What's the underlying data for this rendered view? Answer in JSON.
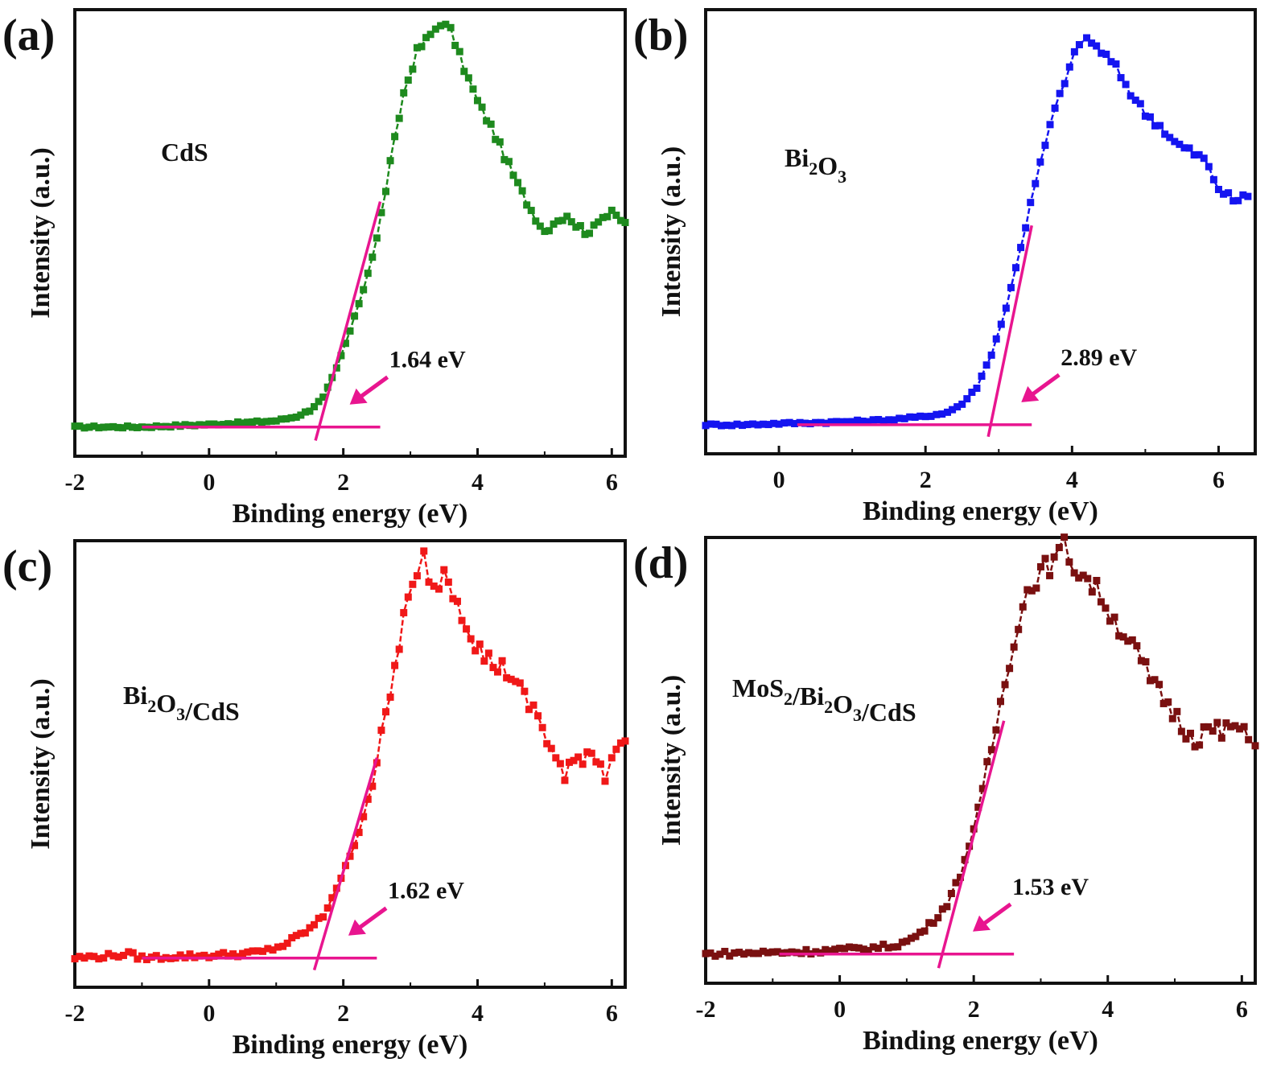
{
  "figure": {
    "accent": "#e8158f",
    "x_title": "Binding energy (eV)",
    "y_title": "Intensity (a.u.)"
  },
  "chart_data": [
    {
      "type": "scatter",
      "panel": "(a)",
      "sample_label": [
        [
          "CdS",
          ""
        ]
      ],
      "color": "#1e8a1e",
      "xlim": [
        -2,
        6.2
      ],
      "ylim": [
        -0.07,
        1.0
      ],
      "xticks": [
        -2,
        0,
        2,
        4,
        6
      ],
      "xlabel": "Binding energy (eV)",
      "ylabel": "Intensity (a.u.)",
      "annotation": "1.64 eV",
      "edge_ev": 1.64,
      "fit_top": [
        2.55,
        0.54
      ],
      "baseline_range": [
        -1.0,
        2.55
      ],
      "peak": [
        3.45,
        0.97
      ],
      "series_points": [
        [
          -2,
          0.0
        ],
        [
          -1.5,
          0.0
        ],
        [
          -1,
          0.0
        ],
        [
          -0.5,
          0.003
        ],
        [
          0,
          0.006
        ],
        [
          0.5,
          0.01
        ],
        [
          1.0,
          0.015
        ],
        [
          1.3,
          0.025
        ],
        [
          1.5,
          0.04
        ],
        [
          1.7,
          0.07
        ],
        [
          1.9,
          0.14
        ],
        [
          2.1,
          0.23
        ],
        [
          2.3,
          0.33
        ],
        [
          2.5,
          0.45
        ],
        [
          2.7,
          0.63
        ],
        [
          2.9,
          0.8
        ],
        [
          3.1,
          0.9
        ],
        [
          3.3,
          0.94
        ],
        [
          3.45,
          0.97
        ],
        [
          3.6,
          0.95
        ],
        [
          3.8,
          0.86
        ],
        [
          4.0,
          0.78
        ],
        [
          4.2,
          0.72
        ],
        [
          4.4,
          0.65
        ],
        [
          4.6,
          0.58
        ],
        [
          4.8,
          0.52
        ],
        [
          5.0,
          0.47
        ],
        [
          5.2,
          0.5
        ],
        [
          5.4,
          0.5
        ],
        [
          5.6,
          0.46
        ],
        [
          5.8,
          0.5
        ],
        [
          6.0,
          0.51
        ],
        [
          6.2,
          0.49
        ]
      ]
    },
    {
      "type": "scatter",
      "panel": "(b)",
      "sample_label": [
        [
          "Bi",
          "2"
        ],
        [
          "O",
          "3"
        ]
      ],
      "color": "#1414f0",
      "xlim": [
        -1,
        6.5
      ],
      "ylim": [
        -0.07,
        1.0
      ],
      "xticks": [
        0,
        2,
        4,
        6
      ],
      "xlabel": "Binding energy (eV)",
      "ylabel": "Intensity (a.u.)",
      "annotation": "2.89 eV",
      "edge_ev": 2.89,
      "fit_top": [
        3.45,
        0.48
      ],
      "baseline_range": [
        0.25,
        3.45
      ],
      "peak": [
        4.2,
        0.93
      ],
      "series_points": [
        [
          -1,
          0.0
        ],
        [
          -0.5,
          0.0
        ],
        [
          0,
          0.003
        ],
        [
          0.5,
          0.005
        ],
        [
          1.0,
          0.008
        ],
        [
          1.5,
          0.012
        ],
        [
          2.0,
          0.02
        ],
        [
          2.3,
          0.03
        ],
        [
          2.5,
          0.05
        ],
        [
          2.7,
          0.09
        ],
        [
          2.9,
          0.17
        ],
        [
          3.1,
          0.28
        ],
        [
          3.3,
          0.43
        ],
        [
          3.5,
          0.58
        ],
        [
          3.7,
          0.72
        ],
        [
          3.9,
          0.83
        ],
        [
          4.1,
          0.92
        ],
        [
          4.2,
          0.93
        ],
        [
          4.4,
          0.9
        ],
        [
          4.6,
          0.86
        ],
        [
          4.8,
          0.8
        ],
        [
          5.0,
          0.75
        ],
        [
          5.2,
          0.72
        ],
        [
          5.4,
          0.68
        ],
        [
          5.6,
          0.66
        ],
        [
          5.8,
          0.64
        ],
        [
          6.0,
          0.57
        ],
        [
          6.2,
          0.54
        ],
        [
          6.4,
          0.55
        ]
      ]
    },
    {
      "type": "scatter",
      "panel": "(c)",
      "sample_label": [
        [
          "Bi",
          "2"
        ],
        [
          "O",
          "3"
        ],
        [
          "/CdS",
          ""
        ]
      ],
      "color": "#f01818",
      "xlim": [
        -2,
        6.2
      ],
      "ylim": [
        -0.07,
        1.0
      ],
      "xticks": [
        -2,
        0,
        2,
        4,
        6
      ],
      "xlabel": "Binding energy (eV)",
      "ylabel": "Intensity (a.u.)",
      "annotation": "1.62 eV",
      "edge_ev": 1.62,
      "fit_top": [
        2.5,
        0.48
      ],
      "baseline_range": [
        -1.0,
        2.5
      ],
      "peak": [
        3.2,
        0.96
      ],
      "series_points": [
        [
          -2,
          0.0
        ],
        [
          -1.5,
          0.005
        ],
        [
          -1.2,
          0.01
        ],
        [
          -1,
          0.0
        ],
        [
          -0.5,
          0.004
        ],
        [
          0,
          0.006
        ],
        [
          0.5,
          0.01
        ],
        [
          0.8,
          0.015
        ],
        [
          1.1,
          0.03
        ],
        [
          1.3,
          0.05
        ],
        [
          1.5,
          0.07
        ],
        [
          1.7,
          0.1
        ],
        [
          1.9,
          0.17
        ],
        [
          2.1,
          0.24
        ],
        [
          2.3,
          0.34
        ],
        [
          2.5,
          0.47
        ],
        [
          2.7,
          0.63
        ],
        [
          2.9,
          0.82
        ],
        [
          3.1,
          0.91
        ],
        [
          3.2,
          0.96
        ],
        [
          3.35,
          0.88
        ],
        [
          3.5,
          0.93
        ],
        [
          3.7,
          0.86
        ],
        [
          3.9,
          0.78
        ],
        [
          4.1,
          0.72
        ],
        [
          4.3,
          0.7
        ],
        [
          4.5,
          0.68
        ],
        [
          4.7,
          0.62
        ],
        [
          4.9,
          0.58
        ],
        [
          5.1,
          0.5
        ],
        [
          5.3,
          0.43
        ],
        [
          5.5,
          0.48
        ],
        [
          5.7,
          0.5
        ],
        [
          5.9,
          0.44
        ],
        [
          6.0,
          0.5
        ],
        [
          6.2,
          0.52
        ]
      ]
    },
    {
      "type": "scatter",
      "panel": "(d)",
      "sample_label": [
        [
          "MoS",
          "2"
        ],
        [
          "/Bi",
          "2"
        ],
        [
          "O",
          "3"
        ],
        [
          "/CdS",
          ""
        ]
      ],
      "color": "#7a1010",
      "xlim": [
        -2,
        6.2
      ],
      "ylim": [
        -0.07,
        1.0
      ],
      "xticks": [
        -2,
        0,
        2,
        4,
        6
      ],
      "xlabel": "Binding energy (eV)",
      "ylabel": "Intensity (a.u.)",
      "annotation": "1.53 eV",
      "edge_ev": 1.53,
      "fit_top": [
        2.45,
        0.56
      ],
      "baseline_range": [
        -0.9,
        2.6
      ],
      "peak": [
        3.35,
        0.98
      ],
      "series_points": [
        [
          -2,
          0.0
        ],
        [
          -1.5,
          0.002
        ],
        [
          -1,
          0.004
        ],
        [
          -0.5,
          0.006
        ],
        [
          0,
          0.01
        ],
        [
          0.5,
          0.015
        ],
        [
          0.8,
          0.02
        ],
        [
          1.0,
          0.03
        ],
        [
          1.2,
          0.05
        ],
        [
          1.4,
          0.08
        ],
        [
          1.6,
          0.12
        ],
        [
          1.8,
          0.19
        ],
        [
          2.0,
          0.3
        ],
        [
          2.2,
          0.44
        ],
        [
          2.4,
          0.6
        ],
        [
          2.6,
          0.76
        ],
        [
          2.8,
          0.87
        ],
        [
          3.0,
          0.92
        ],
        [
          3.2,
          0.94
        ],
        [
          3.35,
          0.98
        ],
        [
          3.5,
          0.93
        ],
        [
          3.7,
          0.9
        ],
        [
          3.9,
          0.86
        ],
        [
          4.1,
          0.8
        ],
        [
          4.3,
          0.76
        ],
        [
          4.5,
          0.7
        ],
        [
          4.7,
          0.64
        ],
        [
          4.9,
          0.6
        ],
        [
          5.1,
          0.55
        ],
        [
          5.3,
          0.52
        ],
        [
          5.5,
          0.54
        ],
        [
          5.7,
          0.53
        ],
        [
          5.9,
          0.55
        ],
        [
          6.1,
          0.51
        ],
        [
          6.2,
          0.5
        ]
      ]
    }
  ]
}
